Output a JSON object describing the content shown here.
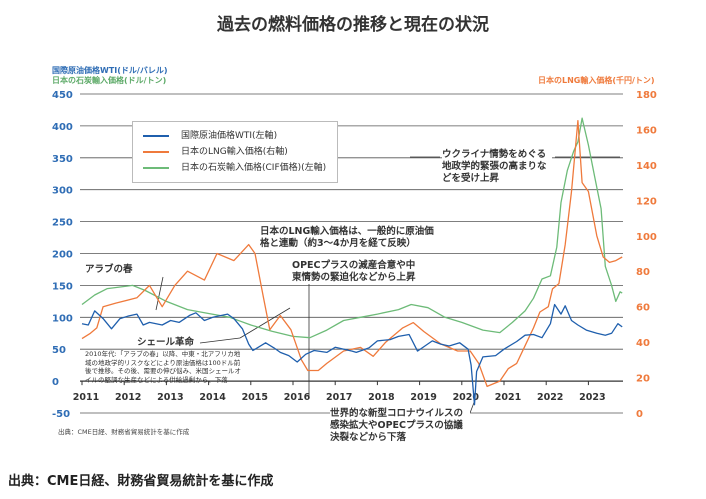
{
  "title": "過去の燃料価格の推移と現在の状況",
  "source_bottom": "出典：CME日経、財務省貿易統計を基に作成",
  "source_inner": "出典：CME日経、財務省貿易統計を基に作成",
  "chart_data": {
    "type": "line",
    "title": "過去の燃料価格の推移と現在の状況",
    "left_axis_labels": [
      "国際原油価格WTI(ドル/バレル)",
      "日本の石炭輸入価格(ドル/トン)"
    ],
    "right_axis_label": "日本のLNG輸入価格(千円/トン)",
    "ylim_left": [
      -50,
      450
    ],
    "ylim_right": [
      0,
      180
    ],
    "yticks_left": [
      "-50",
      "0",
      "50",
      "100",
      "150",
      "200",
      "250",
      "300",
      "350",
      "400",
      "450"
    ],
    "yticks_right": [
      "0",
      "20",
      "40",
      "60",
      "80",
      "100",
      "120",
      "140",
      "160",
      "180"
    ],
    "xticks": [
      "2011",
      "2012",
      "2013",
      "2014",
      "2015",
      "2016",
      "2017",
      "2018",
      "2019",
      "2020",
      "2021",
      "2022",
      "2023"
    ],
    "grid": true,
    "legend_position": "top-left",
    "colors": {
      "wti": "#1f5fad",
      "lng": "#ef7a3c",
      "coal": "#6dbb78",
      "left_axis": "#2f6db5",
      "right_axis": "#ef7a3c"
    },
    "series": [
      {
        "name": "国際原油価格WTI(左軸)",
        "axis": "left",
        "color": "#1f5fad",
        "points": [
          [
            2011.0,
            90
          ],
          [
            2011.15,
            88
          ],
          [
            2011.3,
            110
          ],
          [
            2011.5,
            98
          ],
          [
            2011.7,
            82
          ],
          [
            2011.9,
            98
          ],
          [
            2012.1,
            102
          ],
          [
            2012.3,
            105
          ],
          [
            2012.45,
            88
          ],
          [
            2012.6,
            92
          ],
          [
            2012.9,
            88
          ],
          [
            2013.1,
            95
          ],
          [
            2013.3,
            92
          ],
          [
            2013.55,
            103
          ],
          [
            2013.7,
            107
          ],
          [
            2013.9,
            95
          ],
          [
            2014.1,
            100
          ],
          [
            2014.45,
            105
          ],
          [
            2014.6,
            98
          ],
          [
            2014.8,
            82
          ],
          [
            2014.95,
            58
          ],
          [
            2015.05,
            48
          ],
          [
            2015.35,
            60
          ],
          [
            2015.55,
            52
          ],
          [
            2015.7,
            45
          ],
          [
            2015.9,
            40
          ],
          [
            2016.1,
            30
          ],
          [
            2016.3,
            42
          ],
          [
            2016.5,
            48
          ],
          [
            2016.8,
            45
          ],
          [
            2017.0,
            53
          ],
          [
            2017.4,
            47
          ],
          [
            2017.5,
            45
          ],
          [
            2017.8,
            52
          ],
          [
            2018.0,
            63
          ],
          [
            2018.3,
            65
          ],
          [
            2018.5,
            70
          ],
          [
            2018.75,
            73
          ],
          [
            2018.95,
            47
          ],
          [
            2019.3,
            63
          ],
          [
            2019.5,
            58
          ],
          [
            2019.7,
            55
          ],
          [
            2019.95,
            60
          ],
          [
            2020.15,
            50
          ],
          [
            2020.22,
            25
          ],
          [
            2020.3,
            -37
          ],
          [
            2020.35,
            15
          ],
          [
            2020.5,
            38
          ],
          [
            2020.8,
            40
          ],
          [
            2021.0,
            50
          ],
          [
            2021.3,
            62
          ],
          [
            2021.5,
            72
          ],
          [
            2021.7,
            73
          ],
          [
            2021.9,
            68
          ],
          [
            2022.1,
            90
          ],
          [
            2022.2,
            120
          ],
          [
            2022.35,
            105
          ],
          [
            2022.45,
            118
          ],
          [
            2022.6,
            95
          ],
          [
            2022.75,
            88
          ],
          [
            2022.95,
            80
          ],
          [
            2023.2,
            75
          ],
          [
            2023.4,
            72
          ],
          [
            2023.55,
            75
          ],
          [
            2023.7,
            90
          ],
          [
            2023.8,
            85
          ]
        ]
      },
      {
        "name": "日本のLNG輸入価格(右軸)",
        "axis": "right",
        "color": "#ef7a3c",
        "points": [
          [
            2011.0,
            42
          ],
          [
            2011.2,
            45
          ],
          [
            2011.35,
            48
          ],
          [
            2011.5,
            60
          ],
          [
            2011.8,
            62
          ],
          [
            2012.3,
            65
          ],
          [
            2012.6,
            72
          ],
          [
            2012.9,
            60
          ],
          [
            2013.2,
            72
          ],
          [
            2013.5,
            80
          ],
          [
            2013.9,
            75
          ],
          [
            2014.2,
            90
          ],
          [
            2014.6,
            86
          ],
          [
            2014.95,
            95
          ],
          [
            2015.1,
            90
          ],
          [
            2015.3,
            65
          ],
          [
            2015.45,
            47
          ],
          [
            2015.7,
            55
          ],
          [
            2015.95,
            47
          ],
          [
            2016.2,
            30
          ],
          [
            2016.35,
            24
          ],
          [
            2016.6,
            24
          ],
          [
            2016.8,
            28
          ],
          [
            2017.2,
            35
          ],
          [
            2017.6,
            37
          ],
          [
            2017.9,
            32
          ],
          [
            2018.2,
            40
          ],
          [
            2018.6,
            48
          ],
          [
            2018.85,
            51
          ],
          [
            2019.1,
            46
          ],
          [
            2019.5,
            39
          ],
          [
            2019.9,
            35
          ],
          [
            2020.2,
            35
          ],
          [
            2020.4,
            28
          ],
          [
            2020.6,
            15
          ],
          [
            2020.9,
            18
          ],
          [
            2021.1,
            25
          ],
          [
            2021.3,
            28
          ],
          [
            2021.5,
            38
          ],
          [
            2021.7,
            48
          ],
          [
            2021.85,
            57
          ],
          [
            2022.05,
            60
          ],
          [
            2022.15,
            70
          ],
          [
            2022.3,
            73
          ],
          [
            2022.45,
            95
          ],
          [
            2022.6,
            125
          ],
          [
            2022.75,
            165
          ],
          [
            2022.85,
            130
          ],
          [
            2023.0,
            125
          ],
          [
            2023.2,
            100
          ],
          [
            2023.35,
            88
          ],
          [
            2023.5,
            85
          ],
          [
            2023.65,
            86
          ],
          [
            2023.8,
            88
          ]
        ]
      },
      {
        "name": "日本の石炭輸入価格(CIF価格)(左軸)",
        "axis": "left",
        "color": "#6dbb78",
        "points": [
          [
            2011.0,
            120
          ],
          [
            2011.3,
            135
          ],
          [
            2011.6,
            145
          ],
          [
            2012.2,
            150
          ],
          [
            2012.5,
            142
          ],
          [
            2013.0,
            125
          ],
          [
            2013.5,
            112
          ],
          [
            2014.0,
            106
          ],
          [
            2014.5,
            100
          ],
          [
            2015.0,
            88
          ],
          [
            2015.5,
            78
          ],
          [
            2016.0,
            70
          ],
          [
            2016.4,
            68
          ],
          [
            2016.8,
            80
          ],
          [
            2017.2,
            95
          ],
          [
            2017.6,
            100
          ],
          [
            2018.0,
            105
          ],
          [
            2018.5,
            112
          ],
          [
            2018.8,
            120
          ],
          [
            2019.2,
            115
          ],
          [
            2019.6,
            100
          ],
          [
            2020.0,
            92
          ],
          [
            2020.5,
            80
          ],
          [
            2020.9,
            76
          ],
          [
            2021.2,
            92
          ],
          [
            2021.5,
            110
          ],
          [
            2021.7,
            130
          ],
          [
            2021.9,
            160
          ],
          [
            2022.1,
            165
          ],
          [
            2022.25,
            210
          ],
          [
            2022.35,
            280
          ],
          [
            2022.5,
            330
          ],
          [
            2022.65,
            360
          ],
          [
            2022.75,
            375
          ],
          [
            2022.85,
            412
          ],
          [
            2023.0,
            370
          ],
          [
            2023.15,
            320
          ],
          [
            2023.3,
            270
          ],
          [
            2023.4,
            180
          ],
          [
            2023.55,
            150
          ],
          [
            2023.65,
            125
          ],
          [
            2023.75,
            140
          ],
          [
            2023.8,
            138
          ]
        ]
      }
    ],
    "annotations": [
      "アラブの春",
      "シェール革命",
      "2010年代:「アラブの春」以降、中東・北アフリカ地域の地政学的リスクなどにより原油価格は100ドル前後で推移。その後、需要の伸び悩み、米国シェールオイルの堅調な生産などによる供給過剰から、下落",
      "日本のLNG輸入価格は、一般的に原油価格と連動（約3〜4か月を経て反映）",
      "OPECプラスの減産合意や中東情勢の緊迫化などから上昇",
      "世界的な新型コロナウイルスの感染拡大やOPECプラスの協議決裂などから下落",
      "ウクライナ情勢をめぐる地政学的緊張の高まりなどを受け上昇"
    ]
  }
}
